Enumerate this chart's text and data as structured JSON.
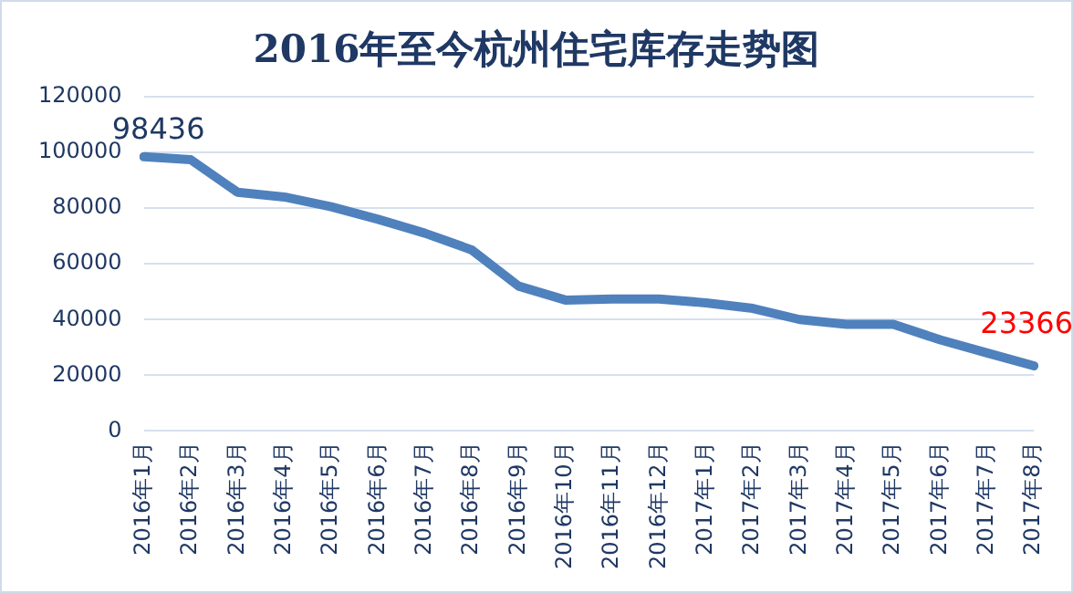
{
  "chart_data": {
    "type": "line",
    "title": "2016年至今杭州住宅库存走势图",
    "categories": [
      "2016年1月",
      "2016年2月",
      "2016年3月",
      "2016年4月",
      "2016年5月",
      "2016年6月",
      "2016年7月",
      "2016年8月",
      "2016年9月",
      "2016年10月",
      "2016年11月",
      "2016年12月",
      "2017年1月",
      "2017年2月",
      "2017年3月",
      "2017年4月",
      "2017年5月",
      "2017年6月",
      "2017年7月",
      "2017年8月"
    ],
    "series": [
      {
        "color": "#4f81bd",
        "values": [
          98436,
          97400,
          85700,
          84000,
          80500,
          76000,
          71000,
          65000,
          52000,
          47000,
          47400,
          47400,
          46000,
          44000,
          40000,
          38300,
          38300,
          32700,
          28000,
          23366
        ],
        "value_labels": [
          "98436",
          null,
          null,
          null,
          null,
          null,
          null,
          null,
          null,
          null,
          null,
          null,
          null,
          null,
          null,
          null,
          null,
          null,
          null,
          "23366"
        ]
      }
    ],
    "ylim": [
      0,
      120000
    ],
    "yticks": [
      0,
      20000,
      40000,
      60000,
      80000,
      100000,
      120000
    ],
    "grid": "y",
    "legend": false,
    "marker": "none",
    "line_style": "solid"
  }
}
